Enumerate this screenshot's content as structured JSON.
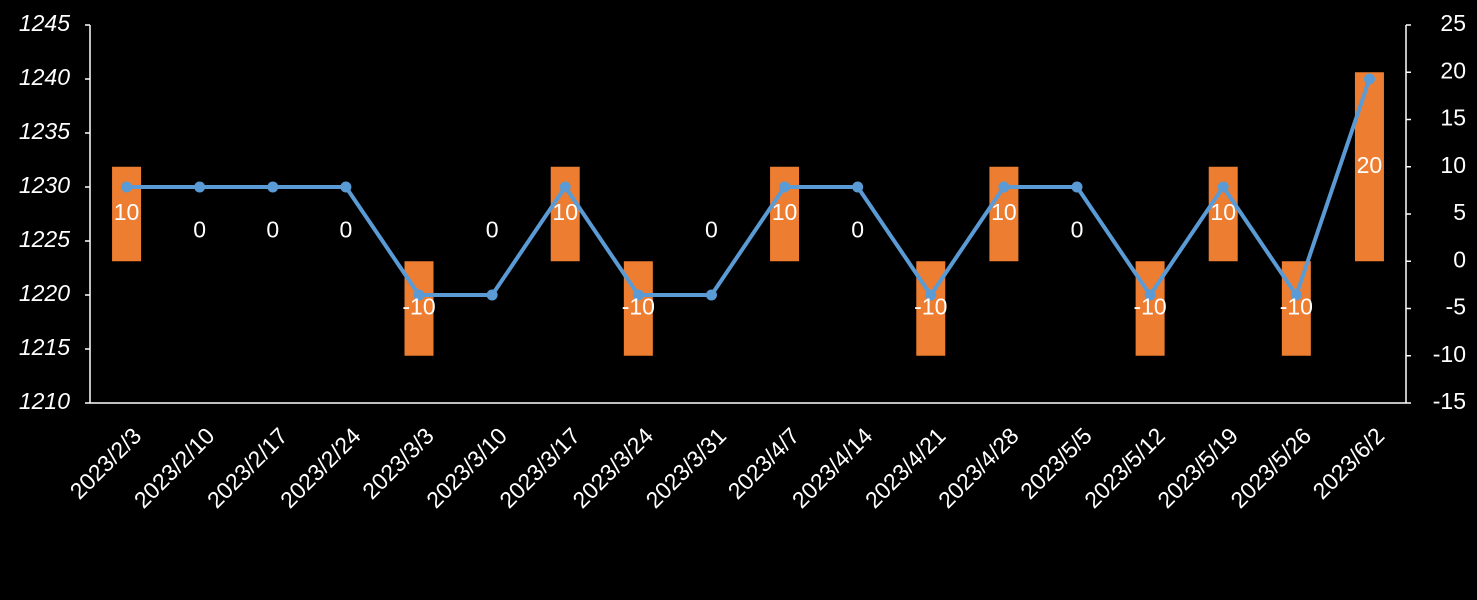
{
  "chart_data": {
    "type": "bar-line",
    "categories": [
      "2023/2/3",
      "2023/2/10",
      "2023/2/17",
      "2023/2/24",
      "2023/3/3",
      "2023/3/10",
      "2023/3/17",
      "2023/3/24",
      "2023/3/31",
      "2023/4/7",
      "2023/4/14",
      "2023/4/21",
      "2023/4/28",
      "2023/5/5",
      "2023/5/12",
      "2023/5/19",
      "2023/5/26",
      "2023/6/2"
    ],
    "series": [
      {
        "type": "bar",
        "axis": "y2",
        "color": "#ed7d31",
        "data_labels": true,
        "values": [
          10,
          0,
          0,
          0,
          -10,
          0,
          10,
          -10,
          0,
          10,
          0,
          -10,
          10,
          0,
          -10,
          10,
          -10,
          20
        ]
      },
      {
        "type": "line",
        "axis": "y",
        "color": "#5b9bd5",
        "values": [
          1230,
          1230,
          1230,
          1230,
          1220,
          1220,
          1230,
          1220,
          1220,
          1230,
          1230,
          1220,
          1230,
          1230,
          1220,
          1230,
          1220,
          1240
        ]
      }
    ],
    "ylim": [
      1210,
      1245
    ],
    "yticks": [
      1210,
      1215,
      1220,
      1225,
      1230,
      1235,
      1240,
      1245
    ],
    "y2lim": [
      -15,
      25
    ],
    "y2ticks": [
      -15,
      -10,
      -5,
      0,
      5,
      10,
      15,
      20,
      25
    ],
    "grid": false
  }
}
